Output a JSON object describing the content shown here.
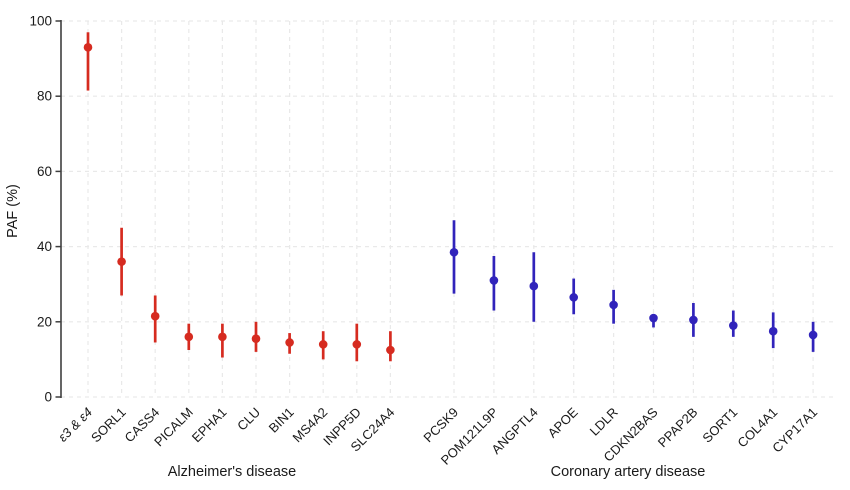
{
  "chart_data": {
    "type": "scatter",
    "subtype": "point-estimates-with-error-bars",
    "title": "",
    "ylabel": "PAF (%)",
    "xlabel": "",
    "ylim": [
      0,
      100
    ],
    "yticks": [
      0,
      20,
      40,
      60,
      80,
      100
    ],
    "grid": "dashed-light-both-axes",
    "legend": "none",
    "groups": [
      {
        "label": "Alzheimer's disease",
        "color": "#d62b20",
        "points": [
          {
            "gene": "ε3 & ε4",
            "italic": true,
            "value": 93.0,
            "ci_low": 81.5,
            "ci_high": 97.0
          },
          {
            "gene": "SORL1",
            "italic": false,
            "value": 36.0,
            "ci_low": 27.0,
            "ci_high": 45.0
          },
          {
            "gene": "CASS4",
            "italic": false,
            "value": 21.5,
            "ci_low": 14.5,
            "ci_high": 27.0
          },
          {
            "gene": "PICALM",
            "italic": false,
            "value": 16.0,
            "ci_low": 12.5,
            "ci_high": 19.5
          },
          {
            "gene": "EPHA1",
            "italic": false,
            "value": 16.0,
            "ci_low": 10.5,
            "ci_high": 19.5
          },
          {
            "gene": "CLU",
            "italic": false,
            "value": 15.5,
            "ci_low": 12.0,
            "ci_high": 20.0
          },
          {
            "gene": "BIN1",
            "italic": false,
            "value": 14.5,
            "ci_low": 11.5,
            "ci_high": 17.0
          },
          {
            "gene": "MS4A2",
            "italic": false,
            "value": 14.0,
            "ci_low": 10.0,
            "ci_high": 17.5
          },
          {
            "gene": "INPP5D",
            "italic": false,
            "value": 14.0,
            "ci_low": 9.5,
            "ci_high": 19.5
          },
          {
            "gene": "SLC24A4",
            "italic": false,
            "value": 12.5,
            "ci_low": 9.5,
            "ci_high": 17.5
          }
        ]
      },
      {
        "label": "Coronary artery disease",
        "color": "#3124bb",
        "points": [
          {
            "gene": "PCSK9",
            "italic": false,
            "value": 38.5,
            "ci_low": 27.5,
            "ci_high": 47.0
          },
          {
            "gene": "POM121L9P",
            "italic": false,
            "value": 31.0,
            "ci_low": 23.0,
            "ci_high": 37.5
          },
          {
            "gene": "ANGPTL4",
            "italic": false,
            "value": 29.5,
            "ci_low": 20.0,
            "ci_high": 38.5
          },
          {
            "gene": "APOE",
            "italic": false,
            "value": 26.5,
            "ci_low": 22.0,
            "ci_high": 31.5
          },
          {
            "gene": "LDLR",
            "italic": false,
            "value": 24.5,
            "ci_low": 19.5,
            "ci_high": 28.5
          },
          {
            "gene": "CDKN2BAS",
            "italic": false,
            "value": 21.0,
            "ci_low": 18.5,
            "ci_high": 22.0
          },
          {
            "gene": "PPAP2B",
            "italic": false,
            "value": 20.5,
            "ci_low": 16.0,
            "ci_high": 25.0
          },
          {
            "gene": "SORT1",
            "italic": false,
            "value": 19.0,
            "ci_low": 16.0,
            "ci_high": 23.0
          },
          {
            "gene": "COL4A1",
            "italic": false,
            "value": 17.5,
            "ci_low": 13.0,
            "ci_high": 22.5
          },
          {
            "gene": "CYP17A1",
            "italic": false,
            "value": 16.5,
            "ci_low": 12.0,
            "ci_high": 20.0
          }
        ]
      }
    ],
    "colors": {
      "alzheimers": "#d62b20",
      "coronary": "#3124bb",
      "axis_line": "#3f3f3f",
      "gridline": "#e9e9e9",
      "text": "#1a1a1a"
    }
  }
}
